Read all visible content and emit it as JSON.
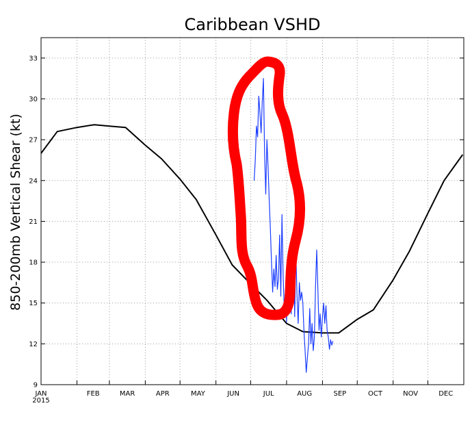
{
  "chart_data": {
    "type": "line",
    "title": "Caribbean VSHD",
    "ylabel": "850-200mb Vertical Shear (kt)",
    "xlabel": "",
    "year_label": "2015",
    "ylim": [
      9,
      34.5
    ],
    "y_ticks": [
      9,
      12,
      15,
      18,
      21,
      24,
      27,
      30,
      33
    ],
    "x_ticks": [
      "JAN",
      "FEB",
      "MAR",
      "APR",
      "MAY",
      "JUN",
      "JUL",
      "AUG",
      "SEP",
      "OCT",
      "NOV",
      "DEC"
    ],
    "grid": true,
    "series": [
      {
        "color": "#000000",
        "points": [
          [
            "2015-01-01",
            26.0
          ],
          [
            "2015-01-15",
            27.6
          ],
          [
            "2015-02-01",
            27.9
          ],
          [
            "2015-02-16",
            28.1
          ],
          [
            "2015-03-01",
            28.0
          ],
          [
            "2015-03-15",
            27.9
          ],
          [
            "2015-04-01",
            26.6
          ],
          [
            "2015-04-15",
            25.6
          ],
          [
            "2015-05-01",
            24.1
          ],
          [
            "2015-05-15",
            22.6
          ],
          [
            "2015-06-01",
            20.0
          ],
          [
            "2015-06-15",
            17.8
          ],
          [
            "2015-07-01",
            16.4
          ],
          [
            "2015-07-15",
            15.2
          ],
          [
            "2015-08-01",
            13.5
          ],
          [
            "2015-08-15",
            12.9
          ],
          [
            "2015-09-01",
            12.8
          ],
          [
            "2015-09-15",
            12.8
          ],
          [
            "2015-10-01",
            13.8
          ],
          [
            "2015-10-15",
            14.5
          ],
          [
            "2015-11-01",
            16.7
          ],
          [
            "2015-11-15",
            18.8
          ],
          [
            "2015-12-01",
            21.6
          ],
          [
            "2015-12-15",
            24.0
          ],
          [
            "2015-12-31",
            25.9
          ]
        ]
      },
      {
        "color": "#1a3cff",
        "points": [
          [
            "2015-07-04",
            24.0
          ],
          [
            "2015-07-05",
            25.5
          ],
          [
            "2015-07-06",
            28.0
          ],
          [
            "2015-07-07",
            27.2
          ],
          [
            "2015-07-08",
            30.2
          ],
          [
            "2015-07-09",
            29.0
          ],
          [
            "2015-07-10",
            27.5
          ],
          [
            "2015-07-11",
            29.8
          ],
          [
            "2015-07-12",
            31.5
          ],
          [
            "2015-07-13",
            26.0
          ],
          [
            "2015-07-14",
            23.0
          ],
          [
            "2015-07-15",
            27.0
          ],
          [
            "2015-07-16",
            25.0
          ],
          [
            "2015-07-17",
            22.5
          ],
          [
            "2015-07-18",
            20.5
          ],
          [
            "2015-07-19",
            18.0
          ],
          [
            "2015-07-20",
            15.8
          ],
          [
            "2015-07-21",
            17.5
          ],
          [
            "2015-07-22",
            16.2
          ],
          [
            "2015-07-23",
            18.5
          ],
          [
            "2015-07-24",
            16.0
          ],
          [
            "2015-07-25",
            16.8
          ],
          [
            "2015-07-26",
            20.0
          ],
          [
            "2015-07-27",
            15.5
          ],
          [
            "2015-07-28",
            21.5
          ],
          [
            "2015-07-29",
            17.0
          ],
          [
            "2015-07-30",
            14.5
          ],
          [
            "2015-07-31",
            16.0
          ],
          [
            "2015-08-01",
            13.6
          ],
          [
            "2015-08-02",
            17.2
          ],
          [
            "2015-08-03",
            15.0
          ],
          [
            "2015-08-04",
            18.6
          ],
          [
            "2015-08-05",
            14.2
          ],
          [
            "2015-08-06",
            17.0
          ],
          [
            "2015-08-07",
            19.0
          ],
          [
            "2015-08-08",
            14.0
          ],
          [
            "2015-08-09",
            18.8
          ],
          [
            "2015-08-10",
            15.5
          ],
          [
            "2015-08-11",
            13.5
          ],
          [
            "2015-08-12",
            16.5
          ],
          [
            "2015-08-13",
            15.2
          ],
          [
            "2015-08-14",
            15.8
          ],
          [
            "2015-08-15",
            15.0
          ],
          [
            "2015-08-16",
            13.0
          ],
          [
            "2015-08-17",
            11.5
          ],
          [
            "2015-08-18",
            9.9
          ],
          [
            "2015-08-19",
            11.0
          ],
          [
            "2015-08-20",
            12.0
          ],
          [
            "2015-08-21",
            14.6
          ],
          [
            "2015-08-22",
            12.0
          ],
          [
            "2015-08-23",
            13.5
          ],
          [
            "2015-08-24",
            11.5
          ],
          [
            "2015-08-25",
            12.5
          ],
          [
            "2015-08-26",
            16.3
          ],
          [
            "2015-08-27",
            18.9
          ],
          [
            "2015-08-28",
            16.0
          ],
          [
            "2015-08-29",
            13.0
          ],
          [
            "2015-08-30",
            14.2
          ],
          [
            "2015-08-31",
            12.5
          ],
          [
            "2015-09-01",
            14.0
          ],
          [
            "2015-09-02",
            15.0
          ],
          [
            "2015-09-03",
            13.5
          ],
          [
            "2015-09-04",
            14.8
          ],
          [
            "2015-09-05",
            13.0
          ],
          [
            "2015-09-06",
            12.5
          ],
          [
            "2015-09-07",
            11.6
          ],
          [
            "2015-09-08",
            12.3
          ],
          [
            "2015-09-09",
            11.9
          ],
          [
            "2015-09-10",
            12.2
          ]
        ]
      }
    ],
    "annotation": {
      "shape": "freehand-loop",
      "color": "#ff0000"
    }
  }
}
